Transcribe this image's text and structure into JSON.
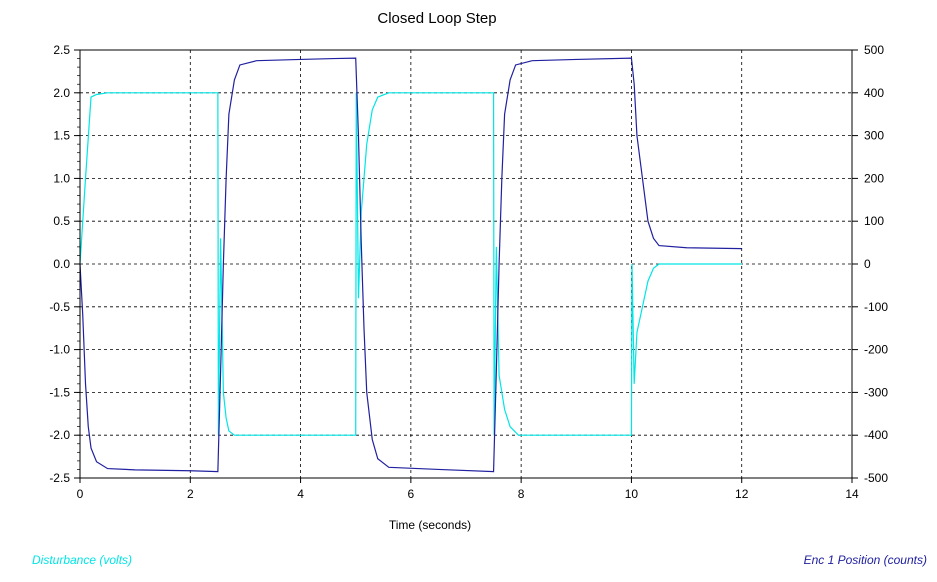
{
  "chart_data": {
    "type": "line",
    "title": "Closed Loop Step",
    "xlabel": "Time (seconds)",
    "xlim": [
      0,
      14
    ],
    "x_ticks": [
      "0",
      "2",
      "4",
      "6",
      "8",
      "10",
      "12",
      "14"
    ],
    "ylim_left": [
      -2.5,
      2.5
    ],
    "y_ticks_left": [
      "2.5",
      "2.0",
      "1.5",
      "1.0",
      "0.5",
      "0.0",
      "-0.5",
      "-1.0",
      "-1.5",
      "-2.0",
      "-2.5"
    ],
    "ylim_right": [
      -500,
      500
    ],
    "y_ticks_right": [
      "500",
      "400",
      "300",
      "200",
      "100",
      "0",
      "-100",
      "-200",
      "-300",
      "-400",
      "-500"
    ],
    "grid": true,
    "series": [
      {
        "name": "Disturbance (volts)",
        "axis": "left",
        "color": "#00e5e5",
        "points": [
          [
            0.0,
            0.0
          ],
          [
            0.1,
            1.0
          ],
          [
            0.2,
            1.95
          ],
          [
            0.3,
            1.98
          ],
          [
            0.5,
            2.0
          ],
          [
            2.5,
            2.0
          ],
          [
            2.51,
            -2.0
          ],
          [
            2.55,
            0.3
          ],
          [
            2.6,
            -1.5
          ],
          [
            2.65,
            -1.8
          ],
          [
            2.7,
            -1.95
          ],
          [
            2.8,
            -2.0
          ],
          [
            5.0,
            -2.0
          ],
          [
            5.01,
            2.0
          ],
          [
            5.05,
            -0.4
          ],
          [
            5.1,
            0.6
          ],
          [
            5.2,
            1.4
          ],
          [
            5.3,
            1.8
          ],
          [
            5.4,
            1.95
          ],
          [
            5.6,
            2.0
          ],
          [
            7.5,
            2.0
          ],
          [
            7.51,
            -2.0
          ],
          [
            7.55,
            0.2
          ],
          [
            7.6,
            -1.3
          ],
          [
            7.7,
            -1.7
          ],
          [
            7.8,
            -1.9
          ],
          [
            7.95,
            -2.0
          ],
          [
            10.0,
            -2.0
          ],
          [
            10.01,
            0.0
          ],
          [
            10.05,
            -1.4
          ],
          [
            10.1,
            -0.8
          ],
          [
            10.2,
            -0.5
          ],
          [
            10.3,
            -0.2
          ],
          [
            10.4,
            -0.05
          ],
          [
            10.5,
            0.0
          ],
          [
            12.0,
            0.0
          ]
        ]
      },
      {
        "name": "Enc 1 Position (counts)",
        "axis": "right",
        "color": "#2020a0",
        "points": [
          [
            0.0,
            0.0
          ],
          [
            0.05,
            -120
          ],
          [
            0.1,
            -280
          ],
          [
            0.15,
            -380
          ],
          [
            0.2,
            -430
          ],
          [
            0.3,
            -462
          ],
          [
            0.5,
            -478
          ],
          [
            1.0,
            -481
          ],
          [
            2.0,
            -483
          ],
          [
            2.5,
            -485
          ],
          [
            2.55,
            -250
          ],
          [
            2.6,
            0
          ],
          [
            2.65,
            200
          ],
          [
            2.7,
            350
          ],
          [
            2.8,
            430
          ],
          [
            2.9,
            465
          ],
          [
            3.2,
            475
          ],
          [
            4.0,
            478
          ],
          [
            4.6,
            480
          ],
          [
            5.0,
            481
          ],
          [
            5.05,
            300
          ],
          [
            5.1,
            50
          ],
          [
            5.15,
            -150
          ],
          [
            5.2,
            -300
          ],
          [
            5.3,
            -410
          ],
          [
            5.4,
            -455
          ],
          [
            5.6,
            -475
          ],
          [
            6.5,
            -480
          ],
          [
            7.5,
            -485
          ],
          [
            7.55,
            -250
          ],
          [
            7.6,
            0
          ],
          [
            7.65,
            200
          ],
          [
            7.7,
            350
          ],
          [
            7.8,
            430
          ],
          [
            7.9,
            465
          ],
          [
            8.2,
            475
          ],
          [
            9.0,
            478
          ],
          [
            10.0,
            481
          ],
          [
            10.05,
            420
          ],
          [
            10.1,
            300
          ],
          [
            10.2,
            200
          ],
          [
            10.3,
            100
          ],
          [
            10.4,
            60
          ],
          [
            10.5,
            43
          ],
          [
            11.0,
            38
          ],
          [
            12.0,
            36
          ]
        ]
      }
    ],
    "legend": [
      "Disturbance (volts)",
      "Enc 1 Position (counts)"
    ],
    "legend_placement": "bottom"
  }
}
